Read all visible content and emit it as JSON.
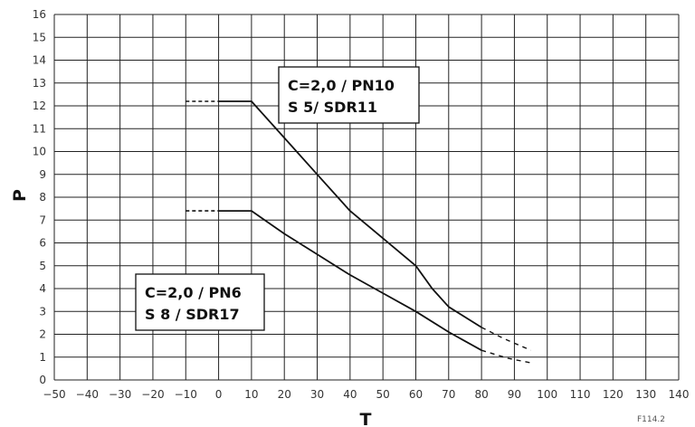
{
  "chart_data": {
    "type": "line",
    "xlabel": "T",
    "ylabel": "P",
    "xlim": [
      -50,
      140
    ],
    "ylim": [
      0,
      16
    ],
    "x_ticks": [
      -50,
      -40,
      -30,
      -20,
      -10,
      0,
      10,
      20,
      30,
      40,
      50,
      60,
      70,
      80,
      90,
      100,
      110,
      120,
      130,
      140
    ],
    "y_ticks": [
      0,
      1,
      2,
      3,
      4,
      5,
      6,
      7,
      8,
      9,
      10,
      11,
      12,
      13,
      14,
      15,
      16
    ],
    "grid": true,
    "figure_code": "F114.2",
    "series": [
      {
        "key": "pn10",
        "points": [
          [
            0,
            12.2
          ],
          [
            10,
            12.2
          ],
          [
            20,
            10.6
          ],
          [
            30,
            9.0
          ],
          [
            40,
            7.4
          ],
          [
            50,
            6.2
          ],
          [
            60,
            5.0
          ],
          [
            65,
            4.0
          ],
          [
            70,
            3.2
          ],
          [
            80,
            2.3
          ]
        ],
        "dashed_start": [
          [
            -10,
            12.2
          ],
          [
            0,
            12.2
          ]
        ],
        "dashed_end": [
          [
            80,
            2.3
          ],
          [
            87,
            1.8
          ],
          [
            95,
            1.3
          ]
        ]
      },
      {
        "key": "pn6",
        "points": [
          [
            0,
            7.4
          ],
          [
            10,
            7.4
          ],
          [
            20,
            6.4
          ],
          [
            30,
            5.5
          ],
          [
            40,
            4.6
          ],
          [
            50,
            3.8
          ],
          [
            60,
            3.0
          ],
          [
            70,
            2.1
          ],
          [
            80,
            1.3
          ]
        ],
        "dashed_start": [
          [
            -10,
            7.4
          ],
          [
            0,
            7.4
          ]
        ],
        "dashed_end": [
          [
            80,
            1.3
          ],
          [
            88,
            0.95
          ],
          [
            95,
            0.75
          ]
        ]
      }
    ],
    "annotations": [
      {
        "key": "pn10",
        "line1": "C=2,0 / PN10",
        "line2": "S 5/ SDR11"
      },
      {
        "key": "pn6",
        "line1": "C=2,0 / PN6",
        "line2": "S 8 / SDR17"
      }
    ]
  }
}
